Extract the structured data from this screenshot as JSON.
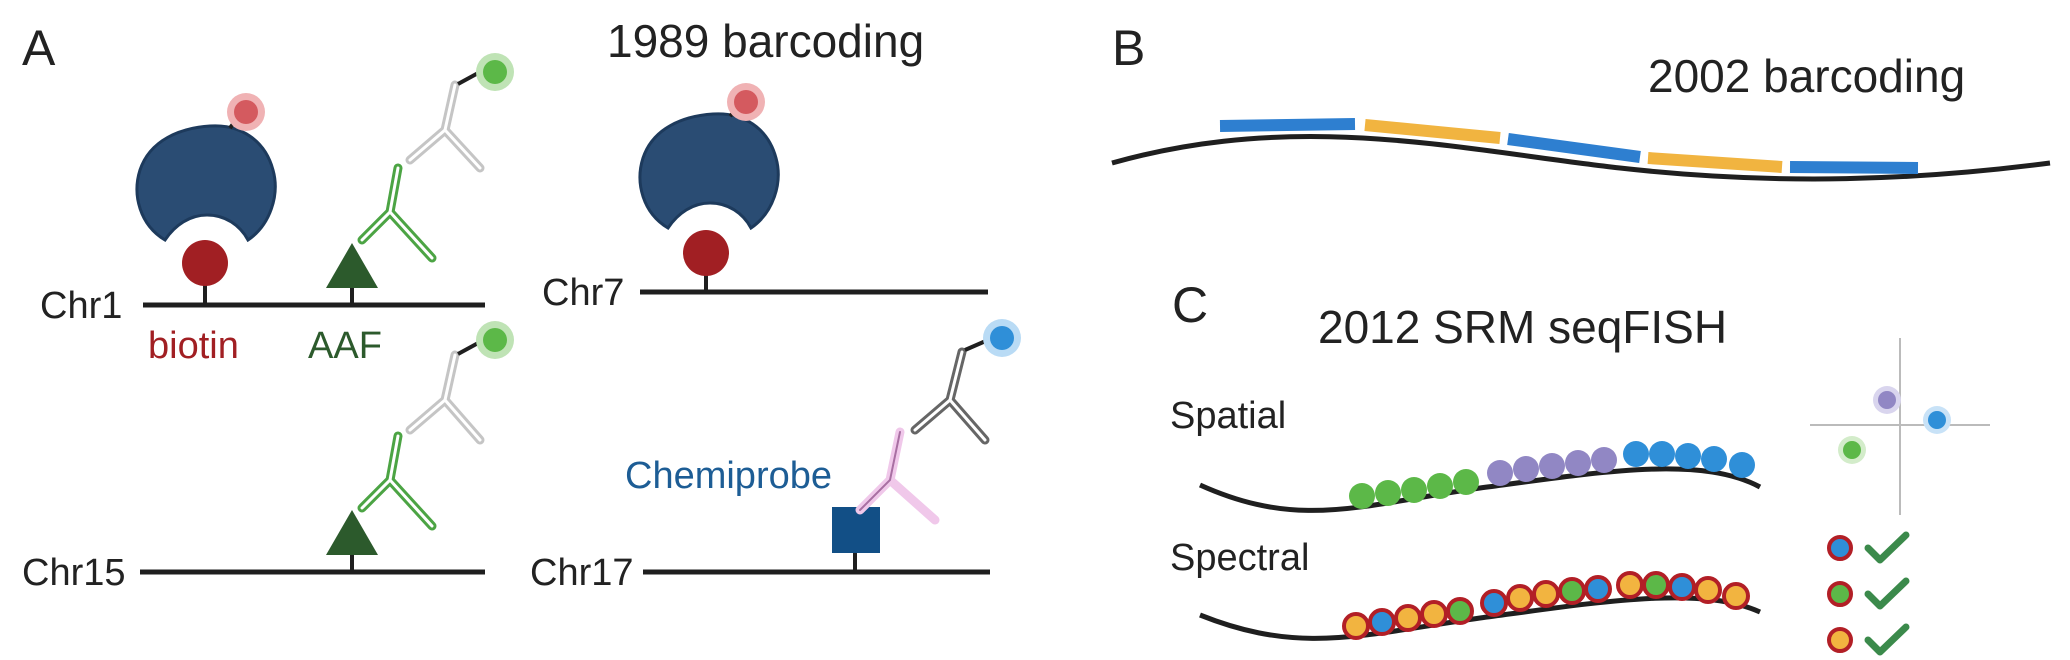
{
  "colors": {
    "line": "#1f1f1f",
    "streptavidin": "#2a4c73",
    "biotin": "#a11f23",
    "aaf": "#2c5a2c",
    "antibody_green": "#4ca444",
    "antibody_light": "#c5c5c5",
    "antibody_dark": "#666666",
    "antibody_pink": "#f0c8ea",
    "chemiprobe_box": "#124f86",
    "chemiprobe_text": "#1d5d95",
    "fluor_red": "#d45a5f",
    "fluor_green": "#5cb848",
    "fluor_blue": "#2f8fd8",
    "fluor_purple": "#9187c4",
    "fluor_orange": "#f2b440",
    "bar_blue": "#2e7fd0",
    "bar_orange": "#f1b440",
    "check": "#3b8a4b"
  },
  "panels": {
    "a": {
      "letter": "A",
      "title": "1989 barcoding",
      "labels": {
        "biotin": "biotin",
        "aaf": "AAF",
        "chemiprobe": "Chemiprobe"
      },
      "chromosomes": [
        "Chr1",
        "Chr7",
        "Chr15",
        "Chr17"
      ]
    },
    "b": {
      "letter": "B",
      "title": "2002 barcoding"
    },
    "c": {
      "letter": "C",
      "title": "2012 SRM seqFISH",
      "rows": [
        "Spatial",
        "Spectral"
      ]
    }
  }
}
